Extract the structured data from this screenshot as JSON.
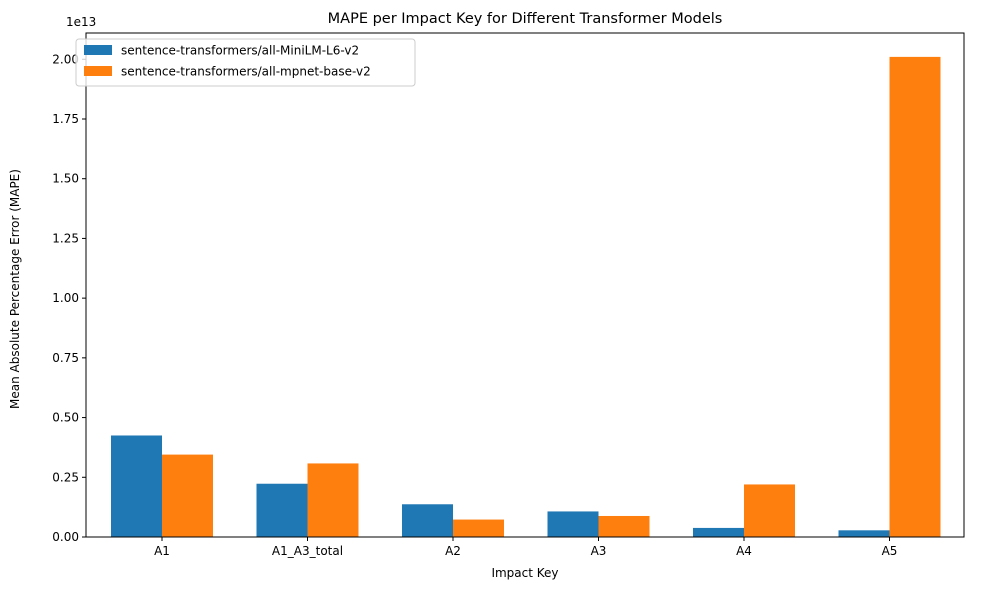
{
  "chart_data": {
    "type": "bar",
    "title": "MAPE per Impact Key for Different Transformer Models",
    "xlabel": "Impact Key",
    "ylabel": "Mean Absolute Percentage Error (MAPE)",
    "y_offset_label": "1e13",
    "y_scale": 10000000000000.0,
    "ylim": [
      0,
      2.11
    ],
    "yticks": [
      "0.00",
      "0.25",
      "0.50",
      "0.75",
      "1.00",
      "1.25",
      "1.50",
      "1.75",
      "2.00"
    ],
    "categories": [
      "A1",
      "A1_A3_total",
      "A2",
      "A3",
      "A4",
      "A5"
    ],
    "series": [
      {
        "name": "sentence-transformers/all-MiniLM-L6-v2",
        "color": "#1f77b4",
        "values": [
          0.425,
          0.223,
          0.137,
          0.107,
          0.038,
          0.028
        ]
      },
      {
        "name": "sentence-transformers/all-mpnet-base-v2",
        "color": "#ff7f0e",
        "values": [
          0.345,
          0.308,
          0.073,
          0.088,
          0.22,
          2.01
        ]
      }
    ],
    "grid": false,
    "legend_position": "top-left"
  }
}
